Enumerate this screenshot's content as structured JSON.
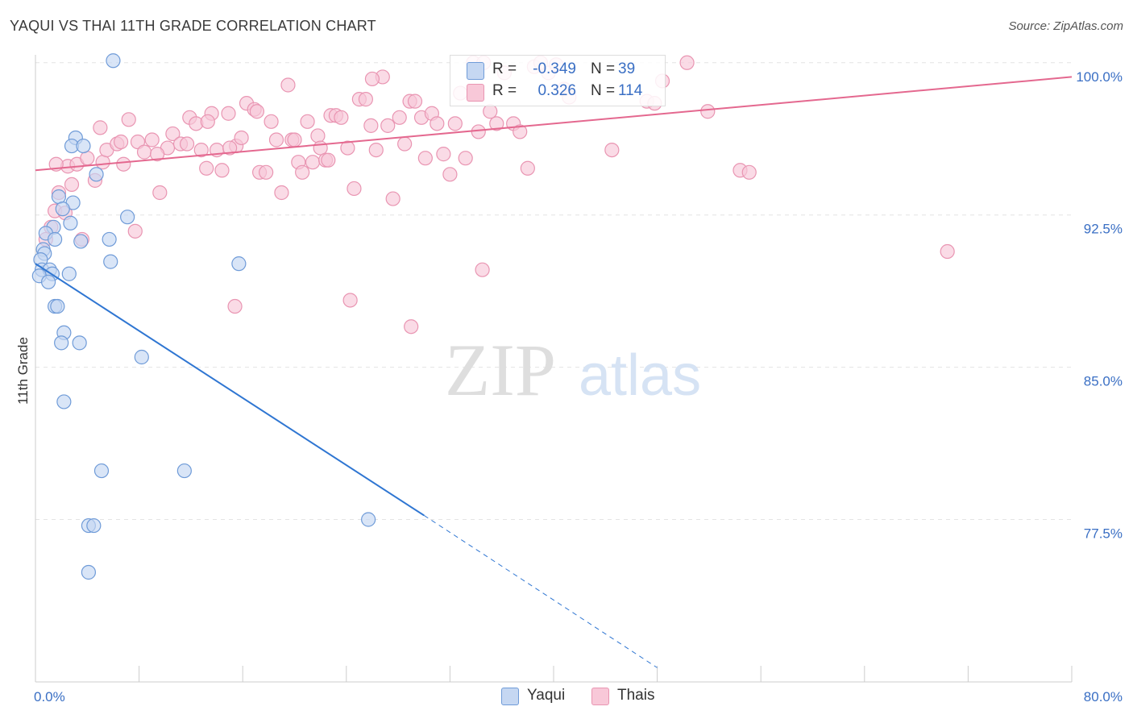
{
  "header": {
    "title": "YAQUI VS THAI 11TH GRADE CORRELATION CHART",
    "source": "Source: ZipAtlas.com"
  },
  "watermark": {
    "zip": "ZIP",
    "atlas": "atlas"
  },
  "legend": {
    "yaqui": {
      "r_label": "R =",
      "r_value": "-0.349",
      "n_label": "N =",
      "n_value": "39"
    },
    "thais": {
      "r_label": "R =",
      "r_value": "0.326",
      "n_label": "N =",
      "n_value": "114"
    }
  },
  "bottom_legend": {
    "yaqui": "Yaqui",
    "thais": "Thais"
  },
  "colors": {
    "yaqui_fill": "#c5d7f2",
    "yaqui_stroke": "#6f9bd8",
    "yaqui_line": "#2f76d2",
    "thais_fill": "#f8c8d8",
    "thais_stroke": "#e995b2",
    "thais_line": "#e4688f",
    "tick_label": "#3a6fc4",
    "grid": "#e4e4e4"
  },
  "chart_data": {
    "type": "scatter",
    "title": "YAQUI VS THAI 11TH GRADE CORRELATION CHART",
    "ylabel": "11th Grade",
    "xlabel": "",
    "xlim": [
      0,
      80
    ],
    "ylim": [
      69.5,
      101.5
    ],
    "y_ticks": [
      {
        "value": 77.5,
        "label": "77.5%"
      },
      {
        "value": 85.0,
        "label": "85.0%"
      },
      {
        "value": 92.5,
        "label": "92.5%"
      },
      {
        "value": 100.0,
        "label": "100.0%"
      }
    ],
    "x_tick_labels": [
      {
        "value": 0,
        "label": "0.0%"
      },
      {
        "value": 80,
        "label": "80.0%"
      }
    ],
    "grid": "horizontal dashed",
    "series": [
      {
        "name": "Yaqui",
        "r": -0.349,
        "n": 39,
        "trend": {
          "x0": 0.0,
          "y0": 90.1,
          "x1": 30.0,
          "y1": 77.7,
          "dashed_to_x": 48.0,
          "dashed_to_y": 70.2
        },
        "points": [
          [
            6.0,
            100.1
          ],
          [
            3.1,
            96.3
          ],
          [
            2.8,
            95.9
          ],
          [
            3.7,
            95.9
          ],
          [
            4.7,
            94.5
          ],
          [
            1.8,
            93.4
          ],
          [
            2.9,
            93.1
          ],
          [
            2.1,
            92.8
          ],
          [
            7.1,
            92.4
          ],
          [
            2.7,
            92.1
          ],
          [
            1.4,
            91.9
          ],
          [
            0.8,
            91.6
          ],
          [
            5.7,
            91.3
          ],
          [
            1.5,
            91.3
          ],
          [
            3.5,
            91.2
          ],
          [
            0.6,
            90.8
          ],
          [
            0.7,
            90.6
          ],
          [
            0.4,
            90.3
          ],
          [
            5.8,
            90.2
          ],
          [
            15.7,
            90.1
          ],
          [
            0.5,
            89.8
          ],
          [
            1.1,
            89.8
          ],
          [
            1.3,
            89.6
          ],
          [
            2.6,
            89.6
          ],
          [
            0.3,
            89.5
          ],
          [
            1.0,
            89.2
          ],
          [
            1.5,
            88.0
          ],
          [
            1.7,
            88.0
          ],
          [
            2.2,
            86.7
          ],
          [
            2.0,
            86.2
          ],
          [
            3.4,
            86.2
          ],
          [
            8.2,
            85.5
          ],
          [
            2.2,
            83.3
          ],
          [
            5.1,
            79.9
          ],
          [
            11.5,
            79.9
          ],
          [
            25.7,
            77.5
          ],
          [
            4.1,
            77.2
          ],
          [
            4.5,
            77.2
          ],
          [
            4.1,
            74.9
          ]
        ]
      },
      {
        "name": "Thais",
        "r": 0.326,
        "n": 114,
        "trend": {
          "x0": 0.0,
          "y0": 94.7,
          "x1": 80.0,
          "y1": 99.3
        },
        "points": [
          [
            1.5,
            92.7
          ],
          [
            1.2,
            91.9
          ],
          [
            0.8,
            91.3
          ],
          [
            1.8,
            93.6
          ],
          [
            2.5,
            94.9
          ],
          [
            3.2,
            95.0
          ],
          [
            4.0,
            95.3
          ],
          [
            4.6,
            94.2
          ],
          [
            5.2,
            95.1
          ],
          [
            5.5,
            95.7
          ],
          [
            6.3,
            96.0
          ],
          [
            6.8,
            95.0
          ],
          [
            7.2,
            97.2
          ],
          [
            7.9,
            96.1
          ],
          [
            8.4,
            95.6
          ],
          [
            9.0,
            96.2
          ],
          [
            9.6,
            93.6
          ],
          [
            10.2,
            95.8
          ],
          [
            10.6,
            96.5
          ],
          [
            11.2,
            96.0
          ],
          [
            11.9,
            97.3
          ],
          [
            12.4,
            97.0
          ],
          [
            12.8,
            95.7
          ],
          [
            13.2,
            94.8
          ],
          [
            13.6,
            97.5
          ],
          [
            14.0,
            95.7
          ],
          [
            14.4,
            94.7
          ],
          [
            14.9,
            97.5
          ],
          [
            15.5,
            95.9
          ],
          [
            15.9,
            96.3
          ],
          [
            16.3,
            98.0
          ],
          [
            16.9,
            97.7
          ],
          [
            17.3,
            94.6
          ],
          [
            17.8,
            94.6
          ],
          [
            18.2,
            97.1
          ],
          [
            18.6,
            96.2
          ],
          [
            19.0,
            93.6
          ],
          [
            19.5,
            98.9
          ],
          [
            19.8,
            96.2
          ],
          [
            20.3,
            95.1
          ],
          [
            20.6,
            94.6
          ],
          [
            21.0,
            97.1
          ],
          [
            21.4,
            95.1
          ],
          [
            21.8,
            96.4
          ],
          [
            22.0,
            95.8
          ],
          [
            22.4,
            95.2
          ],
          [
            22.8,
            97.4
          ],
          [
            23.2,
            97.4
          ],
          [
            23.6,
            97.3
          ],
          [
            24.1,
            95.8
          ],
          [
            24.6,
            93.8
          ],
          [
            25.0,
            98.2
          ],
          [
            25.5,
            98.2
          ],
          [
            25.9,
            96.9
          ],
          [
            26.3,
            95.7
          ],
          [
            26.8,
            99.3
          ],
          [
            27.2,
            96.9
          ],
          [
            27.6,
            93.3
          ],
          [
            28.1,
            97.3
          ],
          [
            28.5,
            96.0
          ],
          [
            28.9,
            98.1
          ],
          [
            29.3,
            98.1
          ],
          [
            29.8,
            97.3
          ],
          [
            30.1,
            95.3
          ],
          [
            30.6,
            97.5
          ],
          [
            31.0,
            97.0
          ],
          [
            31.5,
            95.5
          ],
          [
            32.0,
            94.5
          ],
          [
            32.4,
            97.0
          ],
          [
            32.8,
            98.5
          ],
          [
            33.2,
            95.3
          ],
          [
            33.8,
            100.0
          ],
          [
            34.2,
            96.6
          ],
          [
            34.6,
            100.0
          ],
          [
            35.1,
            97.6
          ],
          [
            35.6,
            97.0
          ],
          [
            36.2,
            99.5
          ],
          [
            36.9,
            97.0
          ],
          [
            37.4,
            96.6
          ],
          [
            38.0,
            94.8
          ],
          [
            38.5,
            99.8
          ],
          [
            39.0,
            100.0
          ],
          [
            39.6,
            99.5
          ],
          [
            40.2,
            99.9
          ],
          [
            40.8,
            98.7
          ],
          [
            41.2,
            98.3
          ],
          [
            44.5,
            95.7
          ],
          [
            47.2,
            98.1
          ],
          [
            47.8,
            98.0
          ],
          [
            48.4,
            99.1
          ],
          [
            50.3,
            100.0
          ],
          [
            51.9,
            97.6
          ],
          [
            54.4,
            94.7
          ],
          [
            55.1,
            94.6
          ],
          [
            70.4,
            90.7
          ],
          [
            34.5,
            89.8
          ],
          [
            15.4,
            88.0
          ],
          [
            24.3,
            88.3
          ],
          [
            29.0,
            87.0
          ],
          [
            1.6,
            95.0
          ],
          [
            2.8,
            94.0
          ],
          [
            3.6,
            91.3
          ],
          [
            7.7,
            91.7
          ],
          [
            5.0,
            96.8
          ],
          [
            2.3,
            92.6
          ],
          [
            6.6,
            96.1
          ],
          [
            9.4,
            95.5
          ],
          [
            11.7,
            96.0
          ],
          [
            13.3,
            97.1
          ],
          [
            15.0,
            95.8
          ],
          [
            17.1,
            97.6
          ],
          [
            20.0,
            96.2
          ],
          [
            22.6,
            95.2
          ],
          [
            26.0,
            99.2
          ]
        ]
      }
    ]
  }
}
